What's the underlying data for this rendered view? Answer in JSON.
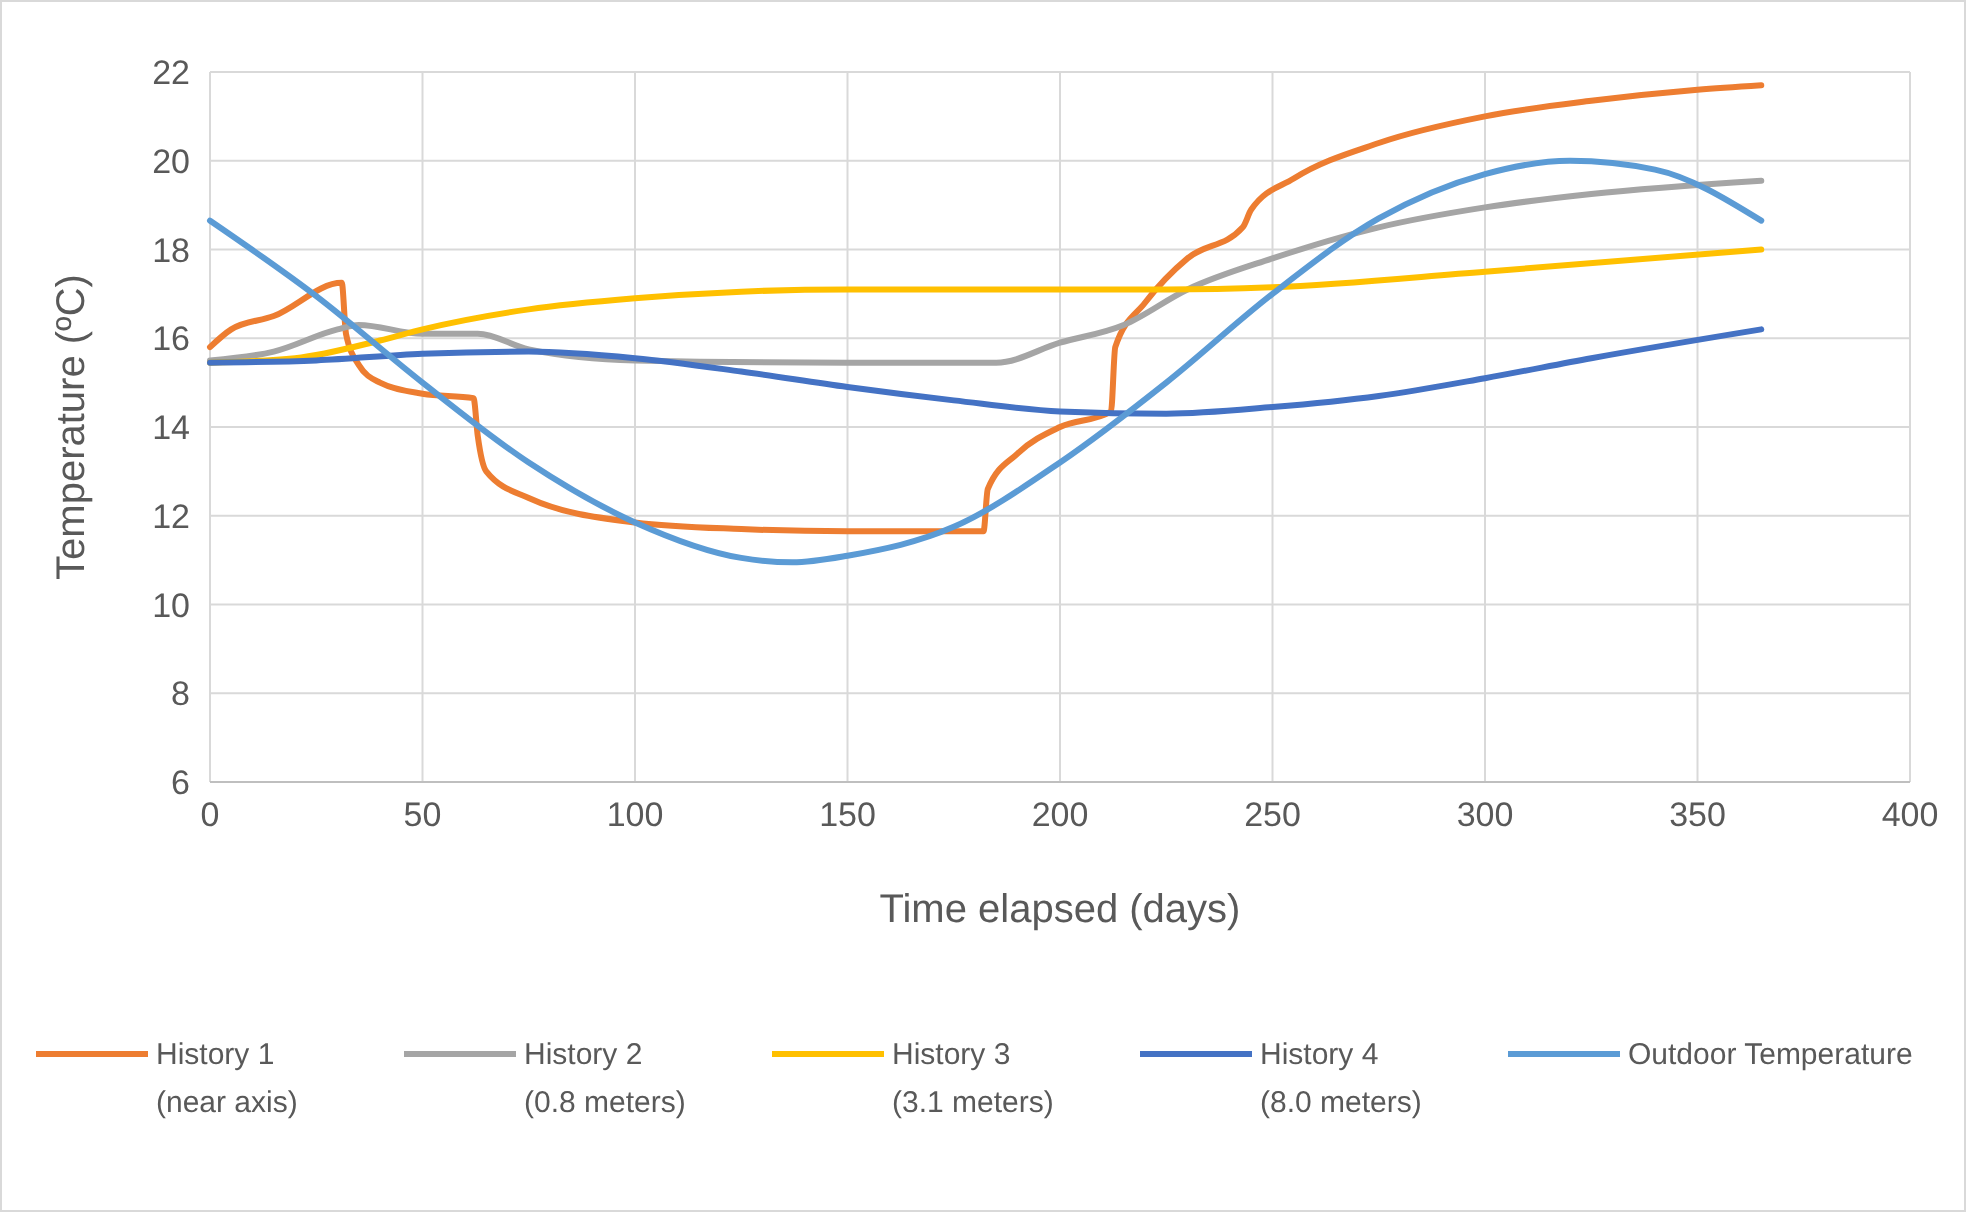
{
  "chart_data": {
    "type": "line",
    "xlabel": "Time elapsed (days)",
    "ylabel": "Temperature (ºC)",
    "xlim": [
      0,
      400
    ],
    "xticks": [
      0,
      50,
      100,
      150,
      200,
      250,
      300,
      350,
      400
    ],
    "ylim": [
      6,
      22
    ],
    "yticks": [
      6,
      8,
      10,
      12,
      14,
      16,
      18,
      20,
      22
    ],
    "grid": true,
    "legend": "bottom",
    "line_style": "solid",
    "series": [
      {
        "name": "History 1\n(near axis)",
        "color": "#ed7d31",
        "x": [
          0,
          5,
          15,
          31,
          32,
          35,
          40,
          50,
          62,
          63,
          65,
          75,
          100,
          125,
          150,
          182,
          183,
          190,
          200,
          212,
          213,
          220,
          230,
          243,
          245,
          255,
          275,
          300,
          325,
          350,
          365
        ],
        "values": [
          15.8,
          16.2,
          16.5,
          17.25,
          16.1,
          15.4,
          15.0,
          14.75,
          14.65,
          13.8,
          13.0,
          12.4,
          11.85,
          11.7,
          11.65,
          11.65,
          12.6,
          13.4,
          14.0,
          14.35,
          15.8,
          16.8,
          17.8,
          18.5,
          18.9,
          19.6,
          20.4,
          21.0,
          21.35,
          21.6,
          21.7
        ]
      },
      {
        "name": "History 2\n(0.8 meters)",
        "color": "#a5a5a5",
        "x": [
          0,
          15,
          30,
          35,
          50,
          63,
          75,
          100,
          150,
          185,
          200,
          215,
          230,
          250,
          275,
          300,
          325,
          365
        ],
        "values": [
          15.5,
          15.7,
          16.2,
          16.3,
          16.1,
          16.1,
          15.75,
          15.5,
          15.45,
          15.45,
          15.9,
          16.3,
          17.1,
          17.8,
          18.5,
          18.95,
          19.25,
          19.55
        ]
      },
      {
        "name": "History 3\n(3.1 meters)",
        "color": "#ffc000",
        "x": [
          0,
          20,
          40,
          50,
          75,
          100,
          125,
          150,
          200,
          225,
          250,
          300,
          365
        ],
        "values": [
          15.45,
          15.55,
          15.95,
          16.2,
          16.65,
          16.9,
          17.05,
          17.1,
          17.1,
          17.1,
          17.15,
          17.5,
          18.0
        ]
      },
      {
        "name": "History 4\n(8.0 meters)",
        "color": "#4472c4",
        "x": [
          0,
          25,
          50,
          75,
          100,
          125,
          150,
          175,
          200,
          225,
          250,
          275,
          300,
          325,
          365
        ],
        "values": [
          15.45,
          15.5,
          15.65,
          15.7,
          15.55,
          15.25,
          14.9,
          14.6,
          14.35,
          14.3,
          14.45,
          14.7,
          15.1,
          15.55,
          16.2
        ]
      },
      {
        "name": "Outdoor Temperature",
        "color": "#5b9bd5",
        "x": [
          0,
          25,
          50,
          75,
          100,
          125,
          137,
          150,
          175,
          200,
          225,
          250,
          275,
          300,
          320,
          340,
          365
        ],
        "values": [
          18.65,
          16.95,
          15.0,
          13.2,
          11.85,
          11.05,
          10.95,
          11.1,
          11.75,
          13.2,
          15.0,
          17.0,
          18.7,
          19.7,
          20.0,
          19.8,
          18.65
        ]
      }
    ]
  }
}
